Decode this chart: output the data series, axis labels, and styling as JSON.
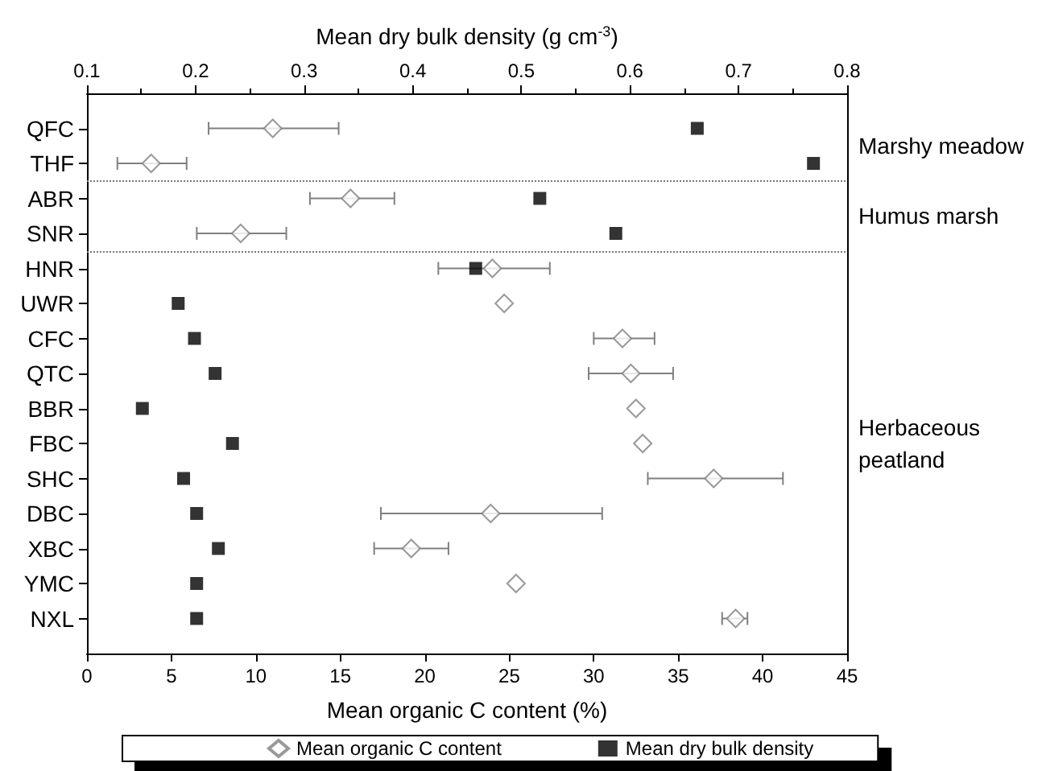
{
  "chart_data": {
    "type": "scatter",
    "orientation": "horizontal",
    "xlabel": "Mean organic C content (%)",
    "x2label": "Mean dry bulk density (g cm$^{-3}$)",
    "categories": [
      "QFC",
      "THF",
      "ABR",
      "SNR",
      "HNR",
      "UWR",
      "CFC",
      "QTC",
      "BBR",
      "FBC",
      "SHC",
      "DBC",
      "XBC",
      "YMC",
      "NXL"
    ],
    "series": [
      {
        "name": "Mean organic C content",
        "color": "#808080",
        "marker": "diamond",
        "values": [
          11.0,
          3.8,
          15.6,
          9.1,
          24.0,
          24.7,
          31.7,
          32.2,
          32.5,
          32.9,
          37.1,
          23.9,
          19.2,
          25.4,
          38.4
        ],
        "errors": [
          [
            7.2,
            14.9
          ],
          [
            1.8,
            5.9
          ],
          [
            13.2,
            18.2
          ],
          [
            6.5,
            11.8
          ],
          [
            20.8,
            27.4
          ],
          null,
          [
            30.0,
            33.6
          ],
          [
            29.7,
            34.7
          ],
          null,
          null,
          [
            33.2,
            41.2
          ],
          [
            17.4,
            30.5
          ],
          [
            17.0,
            21.4
          ],
          null,
          [
            37.6,
            39.1
          ]
        ]
      },
      {
        "name": "Mean dry bulk density",
        "color": "#000000",
        "marker": "square",
        "axis": "x2",
        "values": [
          0.662,
          0.769,
          0.517,
          0.587,
          0.458,
          0.184,
          0.199,
          0.218,
          0.151,
          0.234,
          0.189,
          0.201,
          0.221,
          0.201,
          0.201
        ]
      }
    ],
    "xlim": [
      0,
      45
    ],
    "xticks": [
      0,
      5,
      10,
      15,
      20,
      25,
      30,
      35,
      40,
      45
    ],
    "x2lim": [
      0.1,
      0.8
    ],
    "x2ticks": [
      0.1,
      0.2,
      0.3,
      0.4,
      0.5,
      0.6,
      0.7,
      0.8
    ],
    "annotations": [
      "Marshy meadow",
      "Humus marsh",
      "Herbaceous peatland"
    ],
    "grid": false,
    "legend": "bottom"
  }
}
